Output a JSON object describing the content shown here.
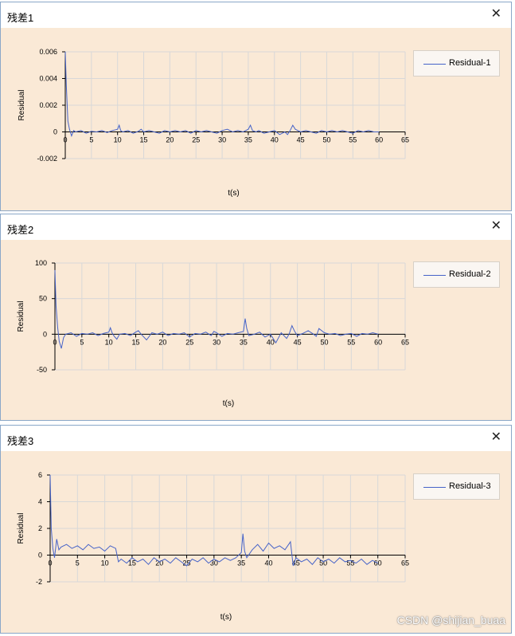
{
  "watermark": "CSDN @shijian_buaa",
  "colors": {
    "line": "#4663c8",
    "plot_bg": "#fae9d6",
    "grid": "#d8d8d8"
  },
  "windows": [
    {
      "title": "残差1",
      "close_icon": "close-icon",
      "chart_data": {
        "type": "line",
        "xlabel": "t(s)",
        "ylabel": "Residual",
        "xlim": [
          0,
          65
        ],
        "ylim": [
          -0.002,
          0.006
        ],
        "xticks": [
          "0",
          "5",
          "10",
          "15",
          "20",
          "25",
          "30",
          "35",
          "40",
          "45",
          "50",
          "55",
          "60",
          "65"
        ],
        "yticks": [
          "-0.002",
          "0",
          "0.002",
          "0.004",
          "0.006"
        ],
        "grid": true,
        "legend_position": "top-right",
        "series": [
          {
            "name": "Residual-1",
            "x": [
              0,
              0.2,
              0.5,
              0.8,
              1.2,
              1.6,
              2,
              3,
              4,
              5,
              6,
              7,
              8,
              9,
              10,
              10.3,
              10.6,
              11,
              12,
              13,
              14,
              14.5,
              15,
              16,
              17,
              18,
              19,
              20,
              21,
              22,
              23,
              24,
              25,
              26,
              27,
              28,
              29,
              30,
              31,
              32,
              33,
              34,
              35,
              35.4,
              35.8,
              36.5,
              37,
              38,
              39,
              40,
              41,
              42,
              42.5,
              43,
              43.5,
              44,
              45,
              46,
              47,
              48,
              49,
              50,
              51,
              52,
              53,
              54,
              55,
              56,
              57,
              58,
              59,
              60
            ],
            "y": [
              0.006,
              0.0035,
              0.0008,
              0.0002,
              -0.0003,
              0.0001,
              0,
              0.0001,
              -0.0001,
              5e-05,
              0,
              0.0001,
              -5e-05,
              0.0001,
              0.0002,
              0.0005,
              0.0001,
              0,
              0.0001,
              -0.0001,
              5e-05,
              0.0002,
              0,
              0.0001,
              0,
              -0.0001,
              0.0001,
              0,
              0.0001,
              0,
              0.0001,
              -0.0001,
              0.0001,
              0,
              0.0001,
              0,
              -0.0001,
              0.0001,
              0.0002,
              0,
              0.0001,
              0,
              0.0002,
              0.0005,
              0.0001,
              0,
              0.0001,
              -0.0001,
              0,
              0.0001,
              -0.0002,
              0,
              -0.0002,
              0.0001,
              0.0005,
              0.0002,
              0,
              0.0001,
              0,
              -0.0001,
              0.0001,
              0,
              0.0001,
              0,
              0.0001,
              0,
              -0.0001,
              0.0001,
              0,
              0.0001,
              0,
              0
            ]
          }
        ]
      }
    },
    {
      "title": "残差2",
      "close_icon": "close-icon",
      "chart_data": {
        "type": "line",
        "xlabel": "t(s)",
        "ylabel": "Residual",
        "xlim": [
          0,
          65
        ],
        "ylim": [
          -50,
          100
        ],
        "xticks": [
          "0",
          "5",
          "10",
          "15",
          "20",
          "25",
          "30",
          "35",
          "40",
          "45",
          "50",
          "55",
          "60",
          "65"
        ],
        "yticks": [
          "-50",
          "0",
          "50",
          "100"
        ],
        "grid": true,
        "legend_position": "top-right",
        "series": [
          {
            "name": "Residual-2",
            "x": [
              0,
              0.2,
              0.5,
              0.8,
              1.2,
              1.6,
              2,
              3,
              4,
              5,
              6,
              7,
              8,
              9,
              10,
              10.3,
              10.6,
              11,
              11.5,
              12,
              13,
              14,
              15,
              15.5,
              16,
              17,
              17.5,
              18,
              19,
              20,
              21,
              22,
              23,
              24,
              25,
              26,
              27,
              28,
              29,
              29.5,
              30,
              31,
              32,
              33,
              34,
              35,
              35.3,
              35.6,
              36,
              37,
              38,
              39,
              40,
              41,
              41.5,
              42,
              43,
              43.5,
              44,
              44.5,
              45,
              46,
              47,
              48,
              48.5,
              49,
              50,
              51,
              52,
              53,
              54,
              55,
              56,
              57,
              58,
              59,
              60
            ],
            "y": [
              90,
              40,
              10,
              -10,
              -20,
              -5,
              0,
              2,
              -3,
              1,
              0,
              2,
              -2,
              1,
              3,
              9,
              2,
              -3,
              -7,
              0,
              1,
              -2,
              3,
              5,
              0,
              -8,
              -3,
              2,
              0,
              3,
              -2,
              1,
              0,
              2,
              -4,
              1,
              0,
              3,
              -2,
              4,
              2,
              -3,
              1,
              0,
              2,
              4,
              22,
              8,
              -2,
              0,
              3,
              -4,
              0,
              -12,
              -5,
              2,
              -6,
              1,
              12,
              4,
              -2,
              1,
              5,
              0,
              -3,
              8,
              2,
              0,
              1,
              -2,
              0,
              1,
              -3,
              1,
              0,
              2,
              0
            ]
          }
        ]
      }
    },
    {
      "title": "残差3",
      "close_icon": "close-icon",
      "chart_data": {
        "type": "line",
        "xlabel": "t(s)",
        "ylabel": "Residual",
        "xlim": [
          0,
          65
        ],
        "ylim": [
          -2,
          6
        ],
        "xticks": [
          "0",
          "5",
          "10",
          "15",
          "20",
          "25",
          "30",
          "35",
          "40",
          "45",
          "50",
          "55",
          "60",
          "65"
        ],
        "yticks": [
          "-2",
          "0",
          "2",
          "4",
          "6"
        ],
        "grid": true,
        "legend_position": "top-right",
        "series": [
          {
            "name": "Residual-3",
            "x": [
              0,
              0.2,
              0.5,
              0.8,
              1.2,
              1.6,
              2,
              3,
              4,
              5,
              6,
              7,
              8,
              9,
              10,
              11,
              12,
              12.5,
              13,
              14,
              15,
              16,
              17,
              18,
              19,
              20,
              21,
              22,
              23,
              24,
              25,
              26,
              27,
              28,
              29,
              30,
              31,
              32,
              33,
              34,
              35,
              35.3,
              35.6,
              36,
              37,
              38,
              39,
              40,
              41,
              42,
              43,
              44,
              44.5,
              45,
              46,
              47,
              48,
              49,
              50,
              51,
              52,
              53,
              54,
              55,
              56,
              57,
              58,
              59,
              60
            ],
            "y": [
              6,
              2,
              0.5,
              -0.2,
              1.2,
              0.4,
              0.6,
              0.8,
              0.5,
              0.7,
              0.4,
              0.8,
              0.5,
              0.6,
              0.3,
              0.7,
              0.5,
              -0.5,
              -0.3,
              -0.6,
              -0.2,
              -0.5,
              -0.3,
              -0.7,
              -0.2,
              -0.5,
              -0.3,
              -0.6,
              -0.2,
              -0.5,
              -0.8,
              -0.3,
              -0.5,
              -0.2,
              -0.6,
              -0.3,
              -0.5,
              -0.2,
              -0.4,
              -0.2,
              0.2,
              1.6,
              0.3,
              -0.2,
              0.4,
              0.8,
              0.3,
              0.9,
              0.5,
              0.7,
              0.4,
              1,
              -0.8,
              -0.2,
              -0.5,
              -0.3,
              -0.7,
              -0.2,
              -0.5,
              -0.3,
              -0.6,
              -0.2,
              -0.5,
              -0.4,
              -0.6,
              -0.3,
              -0.7,
              -0.4,
              -0.6
            ]
          }
        ]
      }
    }
  ]
}
